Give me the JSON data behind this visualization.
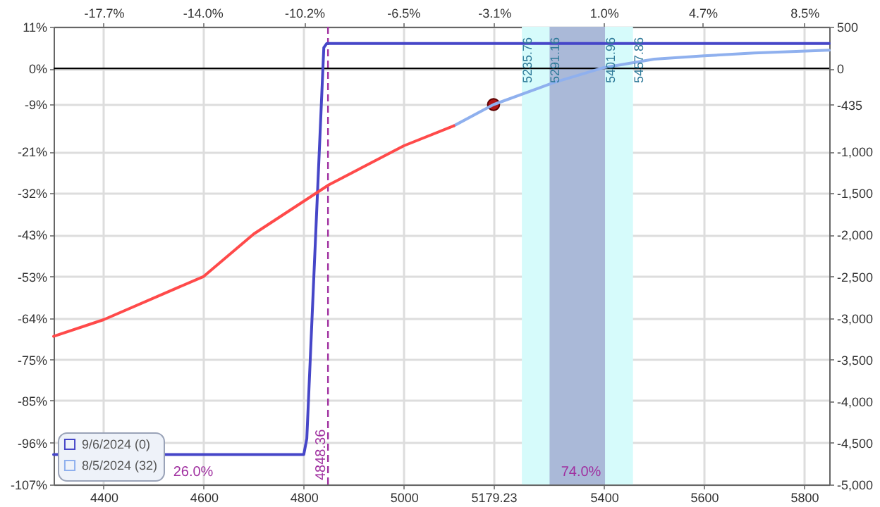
{
  "chart_data": {
    "type": "line",
    "xlim": [
      4300,
      5850
    ],
    "xticks": [
      4400,
      4600,
      4800,
      5000,
      5179.23,
      5400,
      5600,
      5800
    ],
    "x2lim": [
      -19.57,
      9.43
    ],
    "x2ticks": [
      {
        "value": -17.7,
        "label": "-17.7%"
      },
      {
        "value": -14.0,
        "label": "-14.0%"
      },
      {
        "value": -10.2,
        "label": "-10.2%"
      },
      {
        "value": -6.5,
        "label": "-6.5%"
      },
      {
        "value": -3.1,
        "label": "-3.1%"
      },
      {
        "value": 1.0,
        "label": "1.0%"
      },
      {
        "value": 4.7,
        "label": "4.7%"
      },
      {
        "value": 8.5,
        "label": "8.5%"
      }
    ],
    "ylim": [
      -107,
      10.7
    ],
    "yticks": [
      {
        "value": 10.7,
        "label": "11%"
      },
      {
        "value": 0,
        "label": "0%"
      },
      {
        "value": -9.3,
        "label": "-9%"
      },
      {
        "value": -21.4,
        "label": "-21%"
      },
      {
        "value": -32.1,
        "label": "-32%"
      },
      {
        "value": -42.8,
        "label": "-43%"
      },
      {
        "value": -53.5,
        "label": "-53%"
      },
      {
        "value": -64.2,
        "label": "-64%"
      },
      {
        "value": -74.9,
        "label": "-75%"
      },
      {
        "value": -85.4,
        "label": "-85%"
      },
      {
        "value": -96.3,
        "label": "-96%"
      },
      {
        "value": -107,
        "label": "-107%"
      }
    ],
    "y2lim": [
      -5000,
      500
    ],
    "y2ticks": [
      500,
      0,
      -435,
      {
        "value": -1000,
        "label": "-1,000"
      },
      {
        "value": -1500,
        "label": "-1,500"
      },
      {
        "value": -2000,
        "label": "-2,000"
      },
      {
        "value": -2500,
        "label": "-2,500"
      },
      {
        "value": -3000,
        "label": "-3,000"
      },
      {
        "value": -3500,
        "label": "-3,500"
      },
      {
        "value": -4000,
        "label": "-4,000"
      },
      {
        "value": -4500,
        "label": "-4,500"
      },
      {
        "value": -5000,
        "label": "-5,000"
      }
    ],
    "series": [
      {
        "name": "9/6/2024 (0)",
        "color": "#4646c8",
        "axis": "y2",
        "x": [
          4300,
          4800,
          4806,
          4840,
          4846,
          5850
        ],
        "values": [
          -4640,
          -4640,
          -4450,
          250,
          300,
          300
        ]
      },
      {
        "name": "8/5/2024 (32)",
        "color": "#8fb0ee",
        "axis": "y2",
        "x": [
          5100,
          5179.23,
          5300,
          5400,
          5500,
          5600,
          5700,
          5850
        ],
        "values": [
          -690,
          -435,
          -170,
          10,
          110,
          150,
          185,
          218
        ]
      },
      {
        "color": "#ff4a4a",
        "axis": "y2",
        "x": [
          4300,
          4400,
          4600,
          4700,
          4850,
          5000,
          5100
        ],
        "values": [
          -3220,
          -3020,
          -2500,
          -1990,
          -1400,
          -930,
          -690
        ]
      },
      {
        "type": "scatter",
        "color": "#b01818",
        "axis": "y2",
        "marker": "circle",
        "x": [
          5179.23
        ],
        "values": [
          -435
        ]
      }
    ],
    "ref_lines": [
      {
        "axis": "y",
        "value": 0,
        "color": "#000000"
      },
      {
        "axis": "x",
        "value": 4848.36,
        "label": "4848.36",
        "color": "#a030a0",
        "line_style": "dashed"
      }
    ],
    "bands": [
      {
        "axis": "x",
        "from": 5235.76,
        "to": 5457.86,
        "color": "#d6fbfb"
      },
      {
        "axis": "x",
        "from": 5291.16,
        "to": 5401.96,
        "color": "#aab9d8"
      }
    ],
    "annotations": [
      {
        "text": "5235.76",
        "x": 5235.76,
        "y": 8
      },
      {
        "text": "5291.16",
        "x": 5291.16,
        "y": 8
      },
      {
        "text": "5401.96",
        "x": 5401.96,
        "y": 8
      },
      {
        "text": "5457.86",
        "x": 5457.86,
        "y": 8
      },
      "26.0%",
      "74.0%"
    ],
    "grid": true,
    "legend": "bottom left"
  }
}
